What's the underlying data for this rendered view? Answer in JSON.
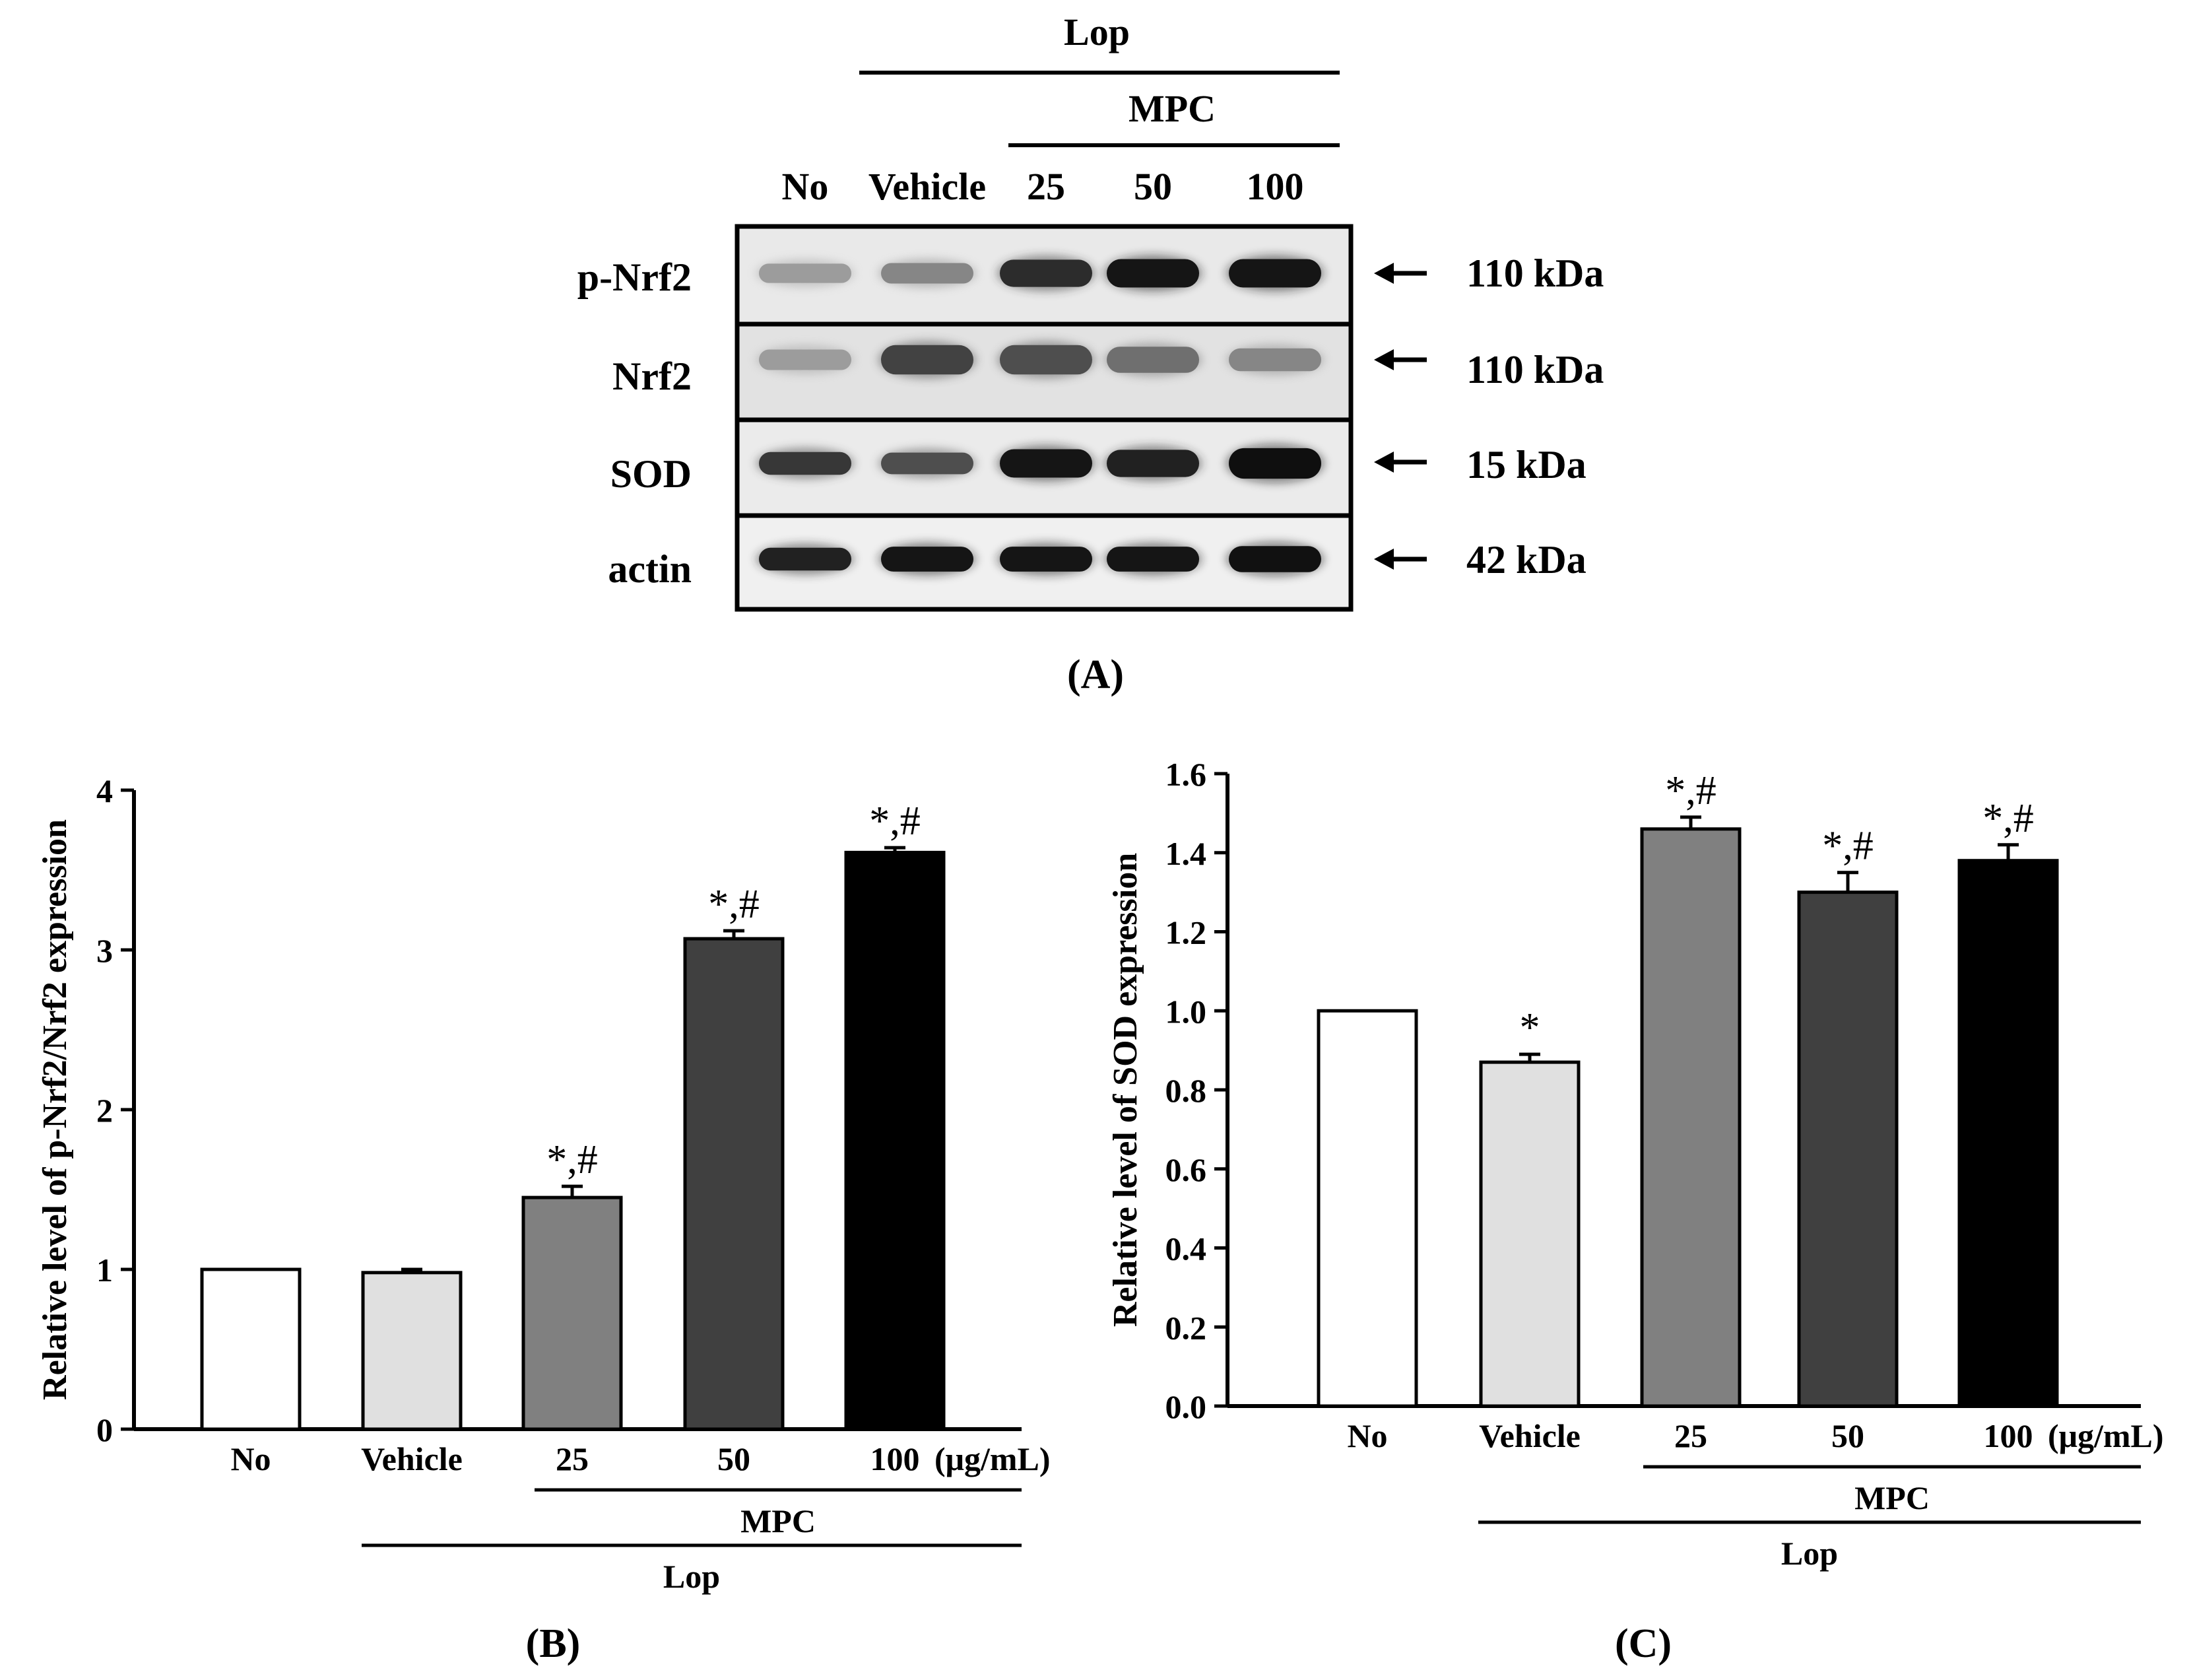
{
  "panel_a": {
    "caption": "(A)",
    "group_label": "Lop",
    "subgroup_label": "MPC",
    "lanes": [
      "No",
      "Vehicle",
      "25",
      "50",
      "100"
    ],
    "rows": [
      {
        "label": "p-Nrf2",
        "size": "110 kDa",
        "intensity": [
          0.35,
          0.45,
          0.85,
          0.95,
          0.95
        ],
        "thickness": [
          0.45,
          0.5,
          0.8,
          0.85,
          0.85
        ]
      },
      {
        "label": "Nrf2",
        "size": "110 kDa",
        "intensity": [
          0.35,
          0.75,
          0.7,
          0.55,
          0.45
        ],
        "thickness": [
          0.5,
          0.9,
          0.9,
          0.75,
          0.6
        ]
      },
      {
        "label": "SOD",
        "size": "15 kDa",
        "intensity": [
          0.8,
          0.7,
          0.95,
          0.9,
          0.98
        ],
        "thickness": [
          0.6,
          0.55,
          0.85,
          0.8,
          0.95
        ]
      },
      {
        "label": "actin",
        "size": "42 kDa",
        "intensity": [
          0.9,
          0.95,
          0.95,
          0.95,
          0.97
        ],
        "thickness": [
          0.6,
          0.7,
          0.7,
          0.7,
          0.75
        ]
      }
    ]
  },
  "chart_data": [
    {
      "type": "bar",
      "panel": "B",
      "caption": "(B)",
      "categories": [
        "No",
        "Vehicle",
        "25",
        "50",
        "100"
      ],
      "unit_label": "(μg/mL)",
      "values": [
        1.0,
        0.98,
        1.45,
        3.07,
        3.61
      ],
      "errors": [
        0.0,
        0.02,
        0.07,
        0.05,
        0.03
      ],
      "annotations": [
        "",
        "",
        "*,#",
        "*,#",
        "*,#"
      ],
      "bar_colors": [
        "#ffffff",
        "#e0e0e0",
        "#808080",
        "#404040",
        "#000000"
      ],
      "ylabel": "Relative level of p-Nrf2/Nrf2 expression",
      "ylim": [
        0,
        4
      ],
      "yticks": [
        "0",
        "1",
        "2",
        "3",
        "4"
      ],
      "group_mpc": "MPC",
      "group_lop": "Lop"
    },
    {
      "type": "bar",
      "panel": "C",
      "caption": "(C)",
      "categories": [
        "No",
        "Vehicle",
        "25",
        "50",
        "100"
      ],
      "unit_label": "(μg/mL)",
      "values": [
        1.0,
        0.87,
        1.46,
        1.3,
        1.38
      ],
      "errors": [
        0.0,
        0.02,
        0.03,
        0.05,
        0.04
      ],
      "annotations": [
        "",
        "*",
        "*,#",
        "*,#",
        "*,#"
      ],
      "bar_colors": [
        "#ffffff",
        "#e0e0e0",
        "#808080",
        "#404040",
        "#000000"
      ],
      "ylabel": "Relative level of SOD expression",
      "ylim": [
        0,
        1.6
      ],
      "yticks": [
        "0.0",
        "0.2",
        "0.4",
        "0.6",
        "0.8",
        "1.0",
        "1.2",
        "1.4",
        "1.6"
      ],
      "group_mpc": "MPC",
      "group_lop": "Lop"
    }
  ]
}
